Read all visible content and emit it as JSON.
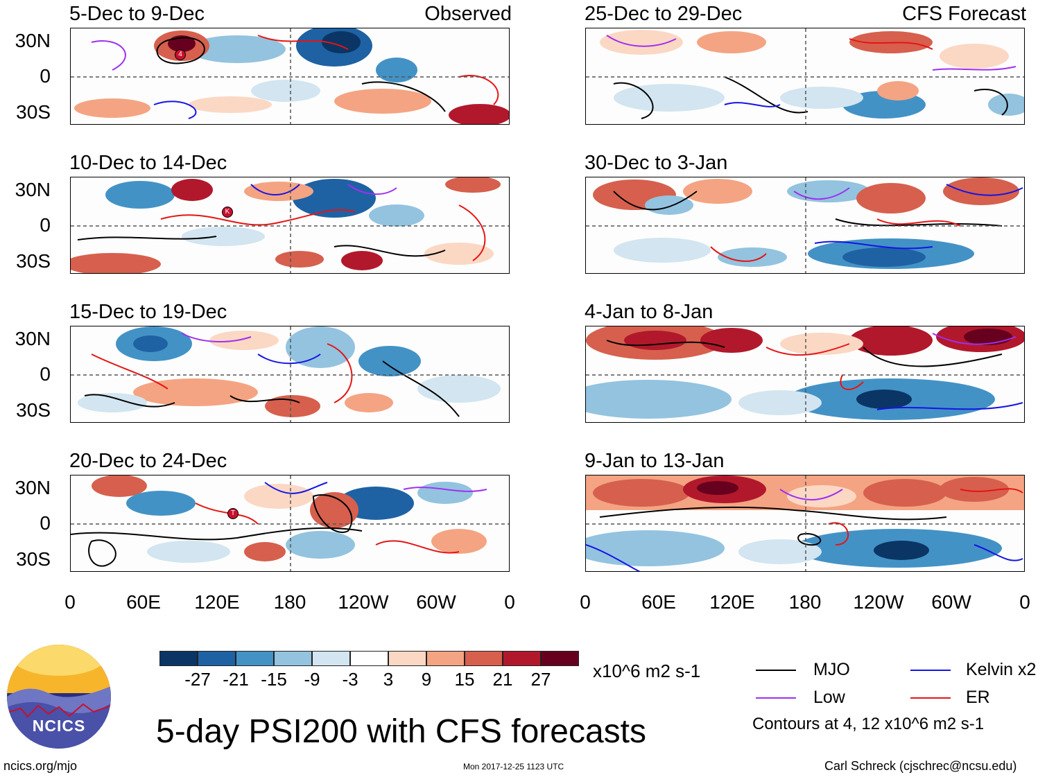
{
  "headline": "5-day PSI200 with CFS forecasts",
  "labels": {
    "observed": "Observed",
    "forecast": "CFS Forecast"
  },
  "lat_labels": [
    "30N",
    "0",
    "30S"
  ],
  "lon_labels": [
    "0",
    "60E",
    "120E",
    "180",
    "120W",
    "60W",
    "0"
  ],
  "observed_panels": [
    {
      "title": "5-Dec to 9-Dec",
      "storm": "4"
    },
    {
      "title": "10-Dec to 14-Dec",
      "storm": "K"
    },
    {
      "title": "15-Dec to 19-Dec",
      "storm": ""
    },
    {
      "title": "20-Dec to 24-Dec",
      "storm": "T"
    }
  ],
  "forecast_panels": [
    {
      "title": "25-Dec to 29-Dec"
    },
    {
      "title": "30-Dec to 3-Jan"
    },
    {
      "title": "4-Jan to 8-Jan"
    },
    {
      "title": "9-Jan to 13-Jan"
    }
  ],
  "colorbar": {
    "ticks": [
      "-27",
      "-21",
      "-15",
      "-9",
      "-3",
      "3",
      "9",
      "15",
      "21",
      "27"
    ],
    "colors": [
      "#0b3565",
      "#1e62a4",
      "#4392c6",
      "#93c3df",
      "#d2e5f0",
      "#ffffff",
      "#fbd8c4",
      "#f4a482",
      "#d6604d",
      "#b2182b",
      "#67001f"
    ],
    "units": "x10^6 m2 s-1"
  },
  "legend": {
    "items": [
      {
        "label": "MJO",
        "color": "#000000"
      },
      {
        "label": "Kelvin x2",
        "color": "#1414e6"
      },
      {
        "label": "Low",
        "color": "#a02ff0"
      },
      {
        "label": "ER",
        "color": "#e61414"
      }
    ],
    "contours": "Contours at 4, 12 x10^6 m2 s-1"
  },
  "logo": {
    "text": "NCICS"
  },
  "footer": {
    "url": "ncics.org/mjo",
    "timestamp": "Mon 2017-12-25 1123 UTC",
    "author": "Carl Schreck (cjschrec@ncsu.edu)"
  }
}
